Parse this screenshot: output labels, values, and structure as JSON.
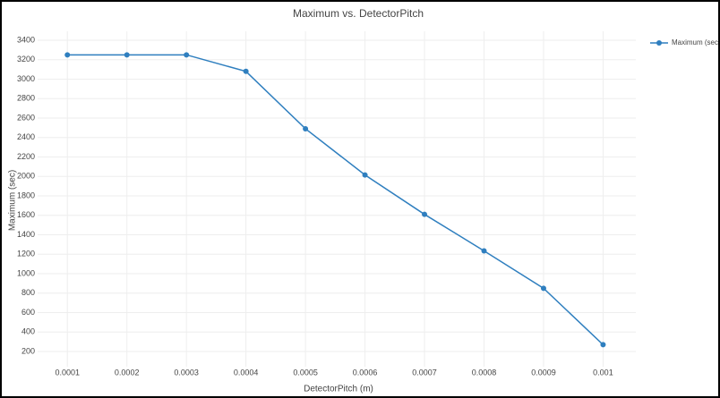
{
  "chart_data": {
    "type": "line",
    "title": "Maximum vs. DetectorPitch",
    "x_label": "DetectorPitch (m)",
    "y_label": "Maximum (sec)",
    "x": [
      0.0001,
      0.0002,
      0.0003,
      0.0004,
      0.0005,
      0.0006,
      0.0007,
      0.0008,
      0.0009,
      0.001
    ],
    "series": [
      {
        "name": "Maximum (sec)",
        "color": "#2f7fbf",
        "values": [
          3250,
          3250,
          3250,
          3080,
          2490,
          2015,
          1610,
          1235,
          850,
          270
        ]
      }
    ],
    "xlim": [
      5e-05,
      0.001055
    ],
    "ylim": [
      44,
      3492
    ],
    "xticks": [
      0.0001,
      0.0002,
      0.0003,
      0.0004,
      0.0005,
      0.0006,
      0.0007,
      0.0008,
      0.0009,
      0.001
    ],
    "yticks": [
      200,
      400,
      600,
      800,
      1000,
      1200,
      1400,
      1600,
      1800,
      2000,
      2200,
      2400,
      2600,
      2800,
      3000,
      3200,
      3400
    ],
    "grid": true,
    "legend": "top-right"
  }
}
